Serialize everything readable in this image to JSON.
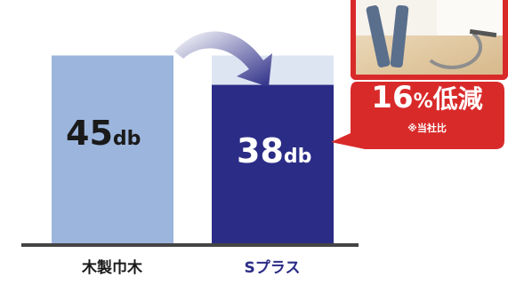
{
  "chart_data": {
    "type": "bar",
    "categories": [
      "木製巾木",
      "Sプラス"
    ],
    "values": [
      45,
      38
    ],
    "value_labels": [
      {
        "number": "45",
        "unit": "db"
      },
      {
        "number": "38",
        "unit": "db"
      }
    ],
    "ylim": [
      0,
      54
    ],
    "colors": {
      "bar_0": "#9cb5dd",
      "bar_1": "#2b2c86",
      "bar_1_ghost": "#dde5f3",
      "baseline": "#444444",
      "arrow": "#2b2c86",
      "badge": "#d92a2a"
    },
    "annotation": {
      "reduction_number": "16",
      "reduction_sign": "%",
      "reduction_word": "低減",
      "note": "※当社比"
    }
  },
  "photo": {
    "icon": "vacuum-cleaning-photo"
  }
}
